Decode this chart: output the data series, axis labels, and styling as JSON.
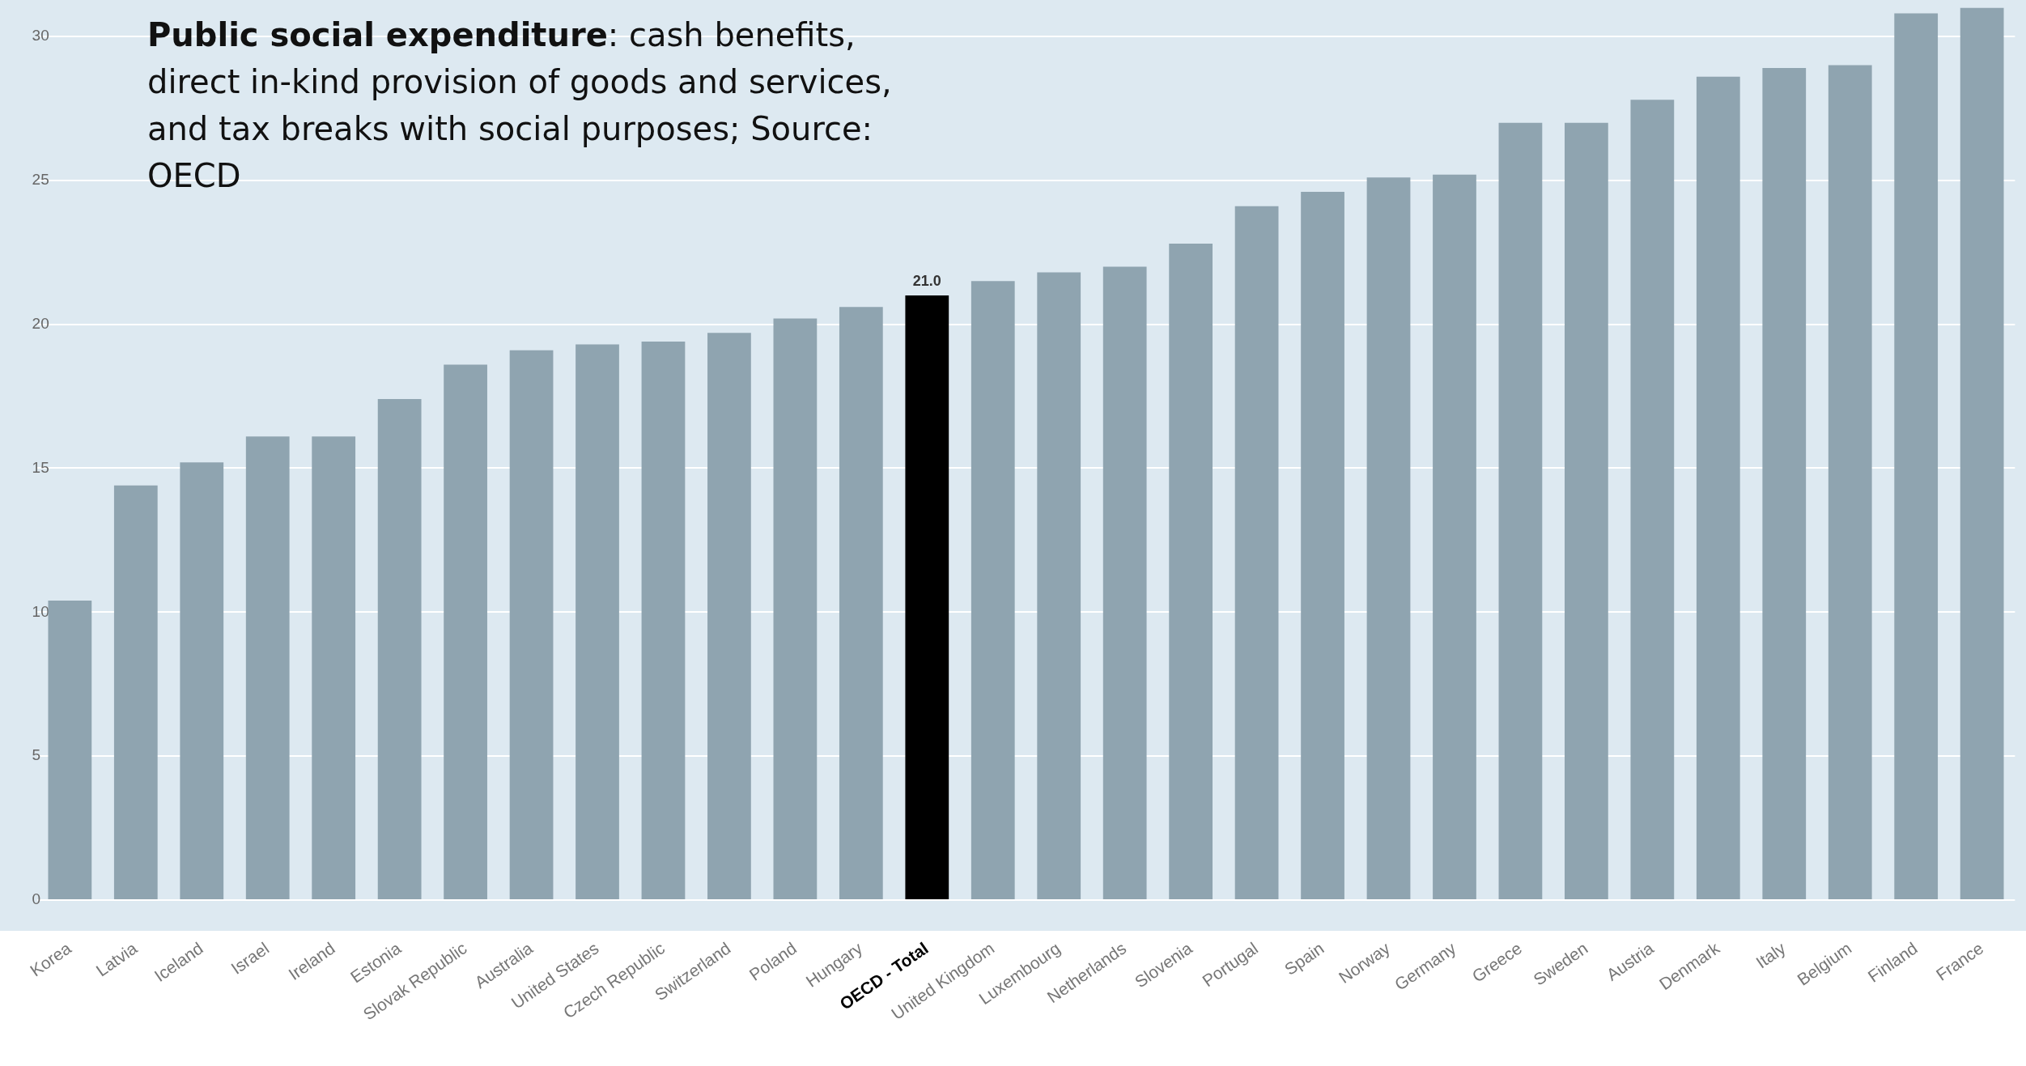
{
  "chart_data": {
    "type": "bar",
    "annotations": [
      "Public social expenditure",
      ": cash benefits, direct in-kind provision of goods and services, and tax breaks with social purposes; Source: OECD"
    ],
    "categories": [
      "Korea",
      "Latvia",
      "Iceland",
      "Israel",
      "Ireland",
      "Estonia",
      "Slovak Republic",
      "Australia",
      "United States",
      "Czech Republic",
      "Switzerland",
      "Poland",
      "Hungary",
      "OECD - Total",
      "United Kingdom",
      "Luxembourg",
      "Netherlands",
      "Slovenia",
      "Portugal",
      "Spain",
      "Norway",
      "Germany",
      "Greece",
      "Sweden",
      "Austria",
      "Denmark",
      "Italy",
      "Belgium",
      "Finland",
      "France"
    ],
    "values": [
      10.4,
      14.4,
      15.2,
      16.1,
      16.1,
      17.4,
      18.6,
      19.1,
      19.3,
      19.4,
      19.7,
      20.2,
      20.6,
      21.0,
      21.5,
      21.8,
      22.0,
      22.8,
      24.1,
      24.6,
      25.1,
      25.2,
      27.0,
      27.0,
      27.8,
      28.6,
      28.9,
      29.0,
      30.8,
      31.0
    ],
    "colors": [
      "#8fa4b0",
      "#8fa4b0",
      "#8fa4b0",
      "#8fa4b0",
      "#8fa4b0",
      "#8fa4b0",
      "#8fa4b0",
      "#8fa4b0",
      "#8fa4b0",
      "#8fa4b0",
      "#8fa4b0",
      "#8fa4b0",
      "#8fa4b0",
      "#000000",
      "#8fa4b0",
      "#8fa4b0",
      "#8fa4b0",
      "#8fa4b0",
      "#8fa4b0",
      "#8fa4b0",
      "#8fa4b0",
      "#8fa4b0",
      "#8fa4b0",
      "#8fa4b0",
      "#8fa4b0",
      "#8fa4b0",
      "#8fa4b0",
      "#8fa4b0",
      "#8fa4b0",
      "#8fa4b0"
    ],
    "value_labels": [
      null,
      null,
      null,
      null,
      null,
      null,
      null,
      null,
      null,
      null,
      null,
      null,
      null,
      "21.0",
      null,
      null,
      null,
      null,
      null,
      null,
      null,
      null,
      null,
      null,
      null,
      null,
      null,
      null,
      null,
      null
    ],
    "ylim": [
      0,
      31
    ],
    "yticks": [
      0,
      5,
      10,
      15,
      20,
      25,
      30
    ],
    "grid": "y",
    "legend": false
  }
}
